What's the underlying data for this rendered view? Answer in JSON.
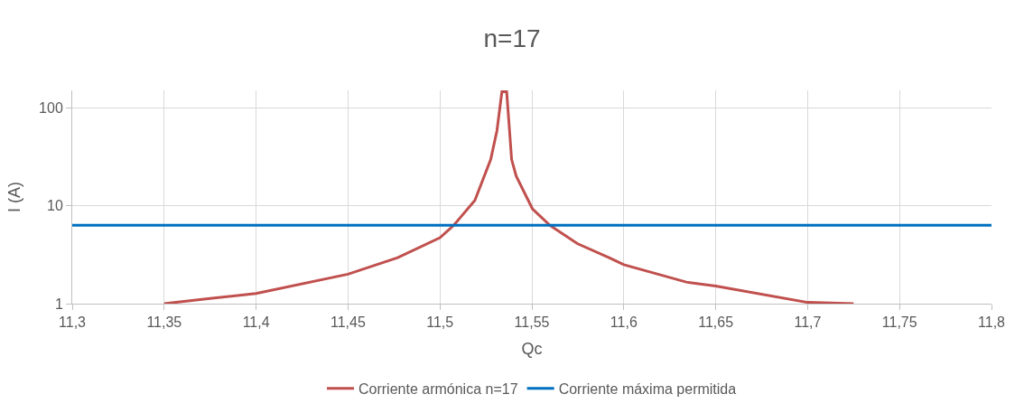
{
  "chart_data": {
    "type": "line",
    "title": "n=17",
    "xlabel": "Qc",
    "ylabel": "I (A)",
    "log": "y",
    "grid": true,
    "legend": "bottom",
    "marker": "none",
    "line_style": "solid",
    "xlim": [
      11.3,
      11.8
    ],
    "xticks": [
      {
        "value": 11.3,
        "label": "11,3"
      },
      {
        "value": 11.35,
        "label": "11,35"
      },
      {
        "value": 11.4,
        "label": "11,4"
      },
      {
        "value": 11.45,
        "label": "11,45"
      },
      {
        "value": 11.5,
        "label": "11,5"
      },
      {
        "value": 11.55,
        "label": "11,55"
      },
      {
        "value": 11.6,
        "label": "11,6"
      },
      {
        "value": 11.65,
        "label": "11,65"
      },
      {
        "value": 11.7,
        "label": "11,7"
      },
      {
        "value": 11.75,
        "label": "11,75"
      },
      {
        "value": 11.8,
        "label": "11,8"
      }
    ],
    "ylim": [
      1,
      150
    ],
    "yticks": [
      1,
      10,
      100
    ],
    "series": [
      {
        "name": "Corriente armónica n=17",
        "color": "#c0504d",
        "x": [
          11.35,
          11.375,
          11.4,
          11.45,
          11.477,
          11.5,
          11.5075,
          11.519,
          11.5276,
          11.531,
          11.5337,
          11.5363,
          11.539,
          11.5415,
          11.5503,
          11.5598,
          11.5747,
          11.592,
          11.6,
          11.634,
          11.65,
          11.7,
          11.725
        ],
        "values": [
          1.0,
          1.13,
          1.27,
          2.0,
          2.95,
          4.7,
          6.3,
          11.3,
          29.5,
          58,
          145,
          145,
          29.5,
          20,
          9.3,
          6.3,
          4.1,
          2.95,
          2.5,
          1.66,
          1.51,
          1.03,
          1.0
        ]
      },
      {
        "name": "Corriente máxima permitida",
        "color": "#0070c0",
        "x": [
          11.3,
          11.8
        ],
        "values": [
          6.3,
          6.3
        ]
      }
    ]
  }
}
